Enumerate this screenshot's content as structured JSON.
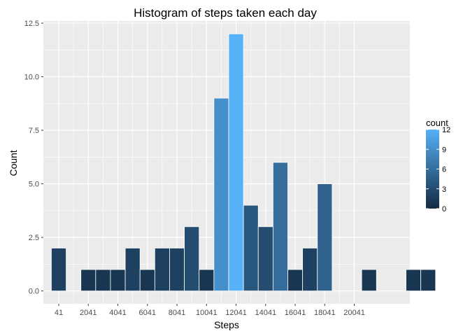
{
  "chart_data": {
    "type": "bar",
    "subtype": "histogram",
    "title": "Histogram of steps taken each day",
    "xlabel": "Steps",
    "ylabel": "Count",
    "bin_width": 1000,
    "xlim": [
      -1000,
      23800
    ],
    "ylim": [
      -0.6,
      12.6
    ],
    "x_ticks": [
      41,
      2041,
      4041,
      6041,
      8041,
      10041,
      12041,
      14041,
      16041,
      18041,
      20041
    ],
    "x_tick_labels": [
      "41",
      "2041",
      "4041",
      "6041",
      "8041",
      "10041",
      "12041",
      "14041",
      "16041",
      "18041",
      "20041"
    ],
    "y_ticks": [
      0,
      2.5,
      5,
      7.5,
      10,
      12.5
    ],
    "y_tick_labels": [
      "0.0",
      "2.5",
      "5.0",
      "7.5",
      "10.0",
      "12.5"
    ],
    "bins": [
      {
        "x": 41,
        "count": 2
      },
      {
        "x": 2041,
        "count": 1
      },
      {
        "x": 3041,
        "count": 1
      },
      {
        "x": 4041,
        "count": 1
      },
      {
        "x": 5041,
        "count": 2
      },
      {
        "x": 6041,
        "count": 1
      },
      {
        "x": 7041,
        "count": 2
      },
      {
        "x": 8041,
        "count": 2
      },
      {
        "x": 9041,
        "count": 3
      },
      {
        "x": 10041,
        "count": 1
      },
      {
        "x": 11041,
        "count": 9
      },
      {
        "x": 12041,
        "count": 12
      },
      {
        "x": 13041,
        "count": 4
      },
      {
        "x": 14041,
        "count": 3
      },
      {
        "x": 15041,
        "count": 6
      },
      {
        "x": 16041,
        "count": 1
      },
      {
        "x": 17041,
        "count": 2
      },
      {
        "x": 18041,
        "count": 5
      },
      {
        "x": 21041,
        "count": 1
      },
      {
        "x": 24041,
        "count": 1
      },
      {
        "x": 25041,
        "count": 1
      }
    ],
    "grid": true,
    "legend": {
      "title": "count",
      "position": "right",
      "type": "colorbar",
      "range": [
        0,
        12
      ],
      "breaks": [
        0,
        3,
        6,
        9,
        12
      ],
      "break_labels": [
        "0",
        "3",
        "6",
        "9",
        "12"
      ],
      "low_color": "#132B43",
      "high_color": "#56B1F7"
    },
    "colors": {
      "panel_background": "#EBEBEB",
      "grid_major": "#FFFFFF",
      "bar_outline": "#FFFFFF"
    }
  }
}
